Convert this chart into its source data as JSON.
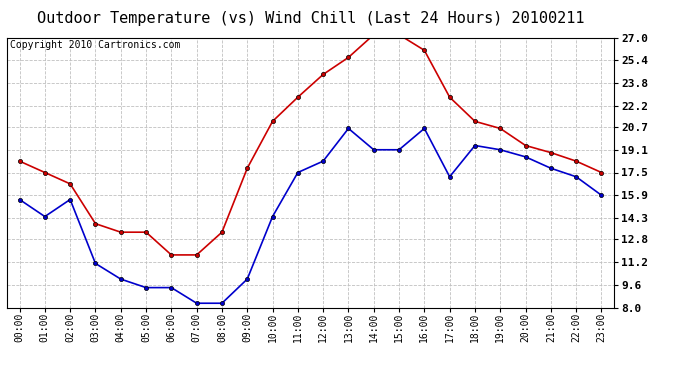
{
  "title": "Outdoor Temperature (vs) Wind Chill (Last 24 Hours) 20100211",
  "copyright": "Copyright 2010 Cartronics.com",
  "hours": [
    "00:00",
    "01:00",
    "02:00",
    "03:00",
    "04:00",
    "05:00",
    "06:00",
    "07:00",
    "08:00",
    "09:00",
    "10:00",
    "11:00",
    "12:00",
    "13:00",
    "14:00",
    "15:00",
    "16:00",
    "17:00",
    "18:00",
    "19:00",
    "20:00",
    "21:00",
    "22:00",
    "23:00"
  ],
  "temp_red": [
    18.3,
    17.5,
    16.7,
    13.9,
    13.3,
    13.3,
    11.7,
    11.7,
    13.3,
    17.8,
    21.1,
    22.8,
    24.4,
    25.6,
    27.2,
    27.2,
    26.1,
    22.8,
    21.1,
    20.6,
    19.4,
    18.9,
    18.3,
    17.5
  ],
  "wind_chill_blue": [
    15.6,
    14.4,
    15.6,
    11.1,
    10.0,
    9.4,
    9.4,
    8.3,
    8.3,
    10.0,
    14.4,
    17.5,
    18.3,
    20.6,
    19.1,
    19.1,
    20.6,
    17.2,
    19.4,
    19.1,
    18.6,
    17.8,
    17.2,
    15.9
  ],
  "ylim": [
    8.0,
    27.0
  ],
  "yticks": [
    8.0,
    9.6,
    11.2,
    12.8,
    14.3,
    15.9,
    17.5,
    19.1,
    20.7,
    22.2,
    23.8,
    25.4,
    27.0
  ],
  "red_color": "#cc0000",
  "blue_color": "#0000cc",
  "grid_color": "#c0c0c0",
  "bg_color": "#ffffff",
  "title_fontsize": 11,
  "copyright_fontsize": 7
}
